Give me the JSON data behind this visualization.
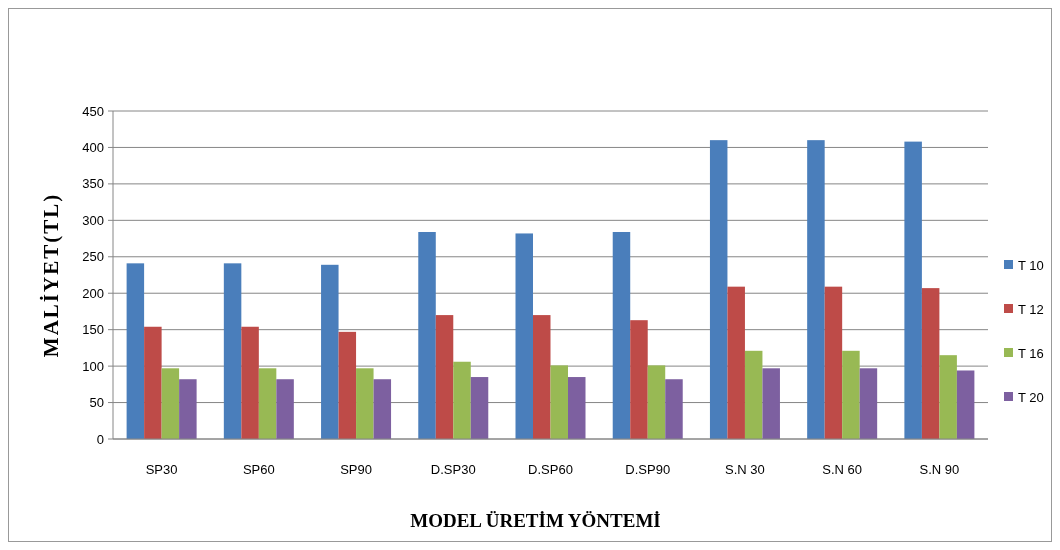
{
  "chart_data": {
    "type": "bar",
    "xlabel": "MODEL ÜRETİM YÖNTEMİ",
    "ylabel": "MALİYET(TL)",
    "categories": [
      "SP30",
      "SP60",
      "SP90",
      "D.SP30",
      "D.SP60",
      "D.SP90",
      "S.N 30",
      "S.N 60",
      "S.N 90"
    ],
    "series": [
      {
        "name": "T 10",
        "color": "#4a7ebb",
        "values": [
          241,
          241,
          239,
          284,
          282,
          284,
          410,
          410,
          408
        ]
      },
      {
        "name": "T 12",
        "color": "#be4b48",
        "values": [
          154,
          154,
          147,
          170,
          170,
          163,
          209,
          209,
          207
        ]
      },
      {
        "name": "T 16",
        "color": "#98b954",
        "values": [
          97,
          97,
          97,
          106,
          101,
          101,
          121,
          121,
          115
        ]
      },
      {
        "name": "T 20",
        "color": "#7d60a0",
        "values": [
          82,
          82,
          82,
          85,
          85,
          82,
          97,
          97,
          94
        ]
      }
    ],
    "ylim": [
      0,
      450
    ],
    "yticks": [
      0,
      50,
      100,
      150,
      200,
      250,
      300,
      350,
      400,
      450
    ],
    "grid": "y",
    "legend": "right"
  }
}
